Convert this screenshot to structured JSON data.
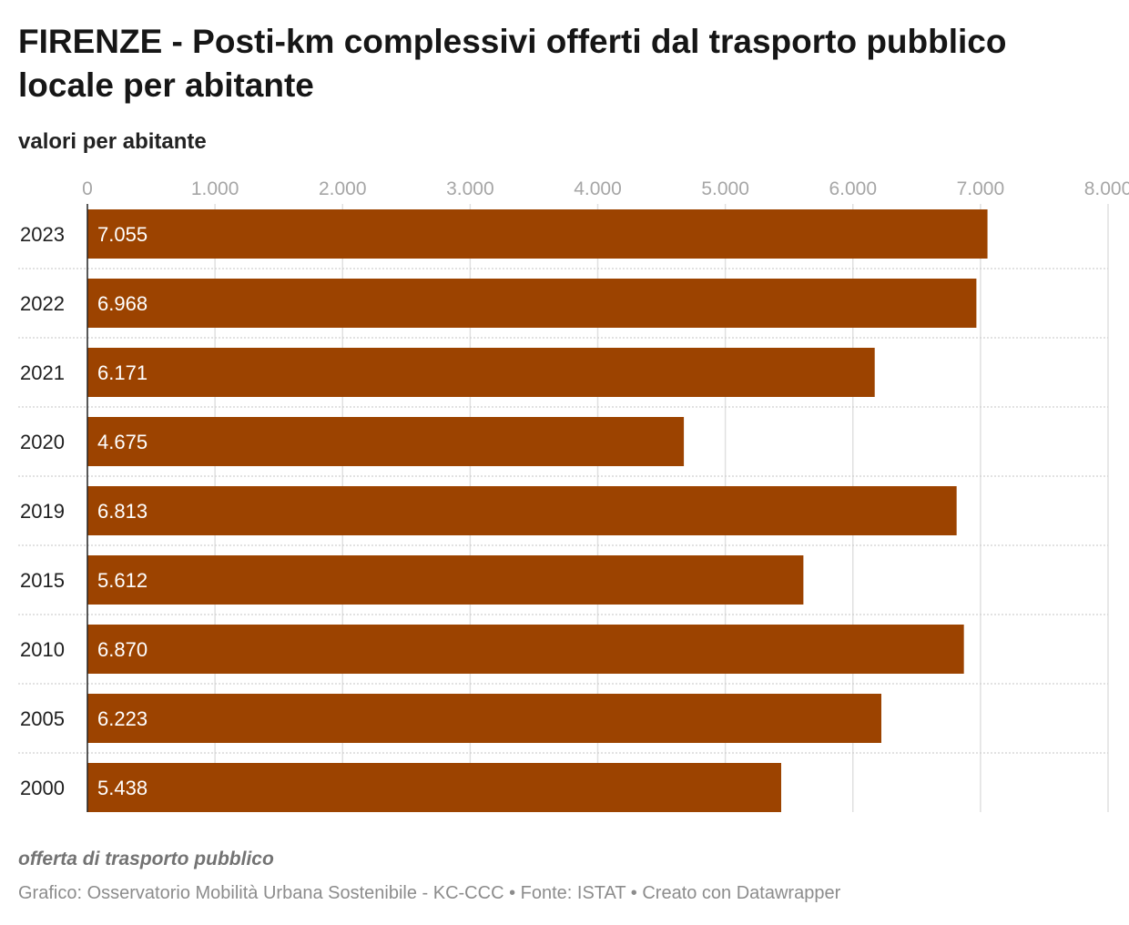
{
  "header": {
    "title": "FIRENZE - Posti-km complessivi offerti dal trasporto pubblico locale per abitante",
    "subtitle": "valori per abitante"
  },
  "footer": {
    "note": "offerta di trasporto pubblico",
    "source": "Grafico: Osservatorio Mobilità Urbana Sostenibile - KC-CCC • Fonte: ISTAT • Creato con Datawrapper"
  },
  "colors": {
    "bar": "#9c4300",
    "grid": "#e0e0e0",
    "axis": "#222222"
  },
  "chart_data": {
    "type": "bar",
    "orientation": "horizontal",
    "categories": [
      "2023",
      "2022",
      "2021",
      "2020",
      "2019",
      "2015",
      "2010",
      "2005",
      "2000"
    ],
    "values": [
      7055,
      6968,
      6171,
      4675,
      6813,
      5612,
      6870,
      6223,
      5438
    ],
    "value_labels": [
      "7.055",
      "6.968",
      "6.171",
      "4.675",
      "6.813",
      "5.612",
      "6.870",
      "6.223",
      "5.438"
    ],
    "title": "FIRENZE - Posti-km complessivi offerti dal trasporto pubblico locale per abitante",
    "subtitle": "valori per abitante",
    "xlim": [
      0,
      8000
    ],
    "ticks": [
      0,
      1000,
      2000,
      3000,
      4000,
      5000,
      6000,
      7000,
      8000
    ],
    "tick_labels": [
      "0",
      "1.000",
      "2.000",
      "3.000",
      "4.000",
      "5.000",
      "6.000",
      "7.000",
      "8.000"
    ],
    "xaxis_position": "top",
    "grid": true,
    "legend": "none"
  }
}
